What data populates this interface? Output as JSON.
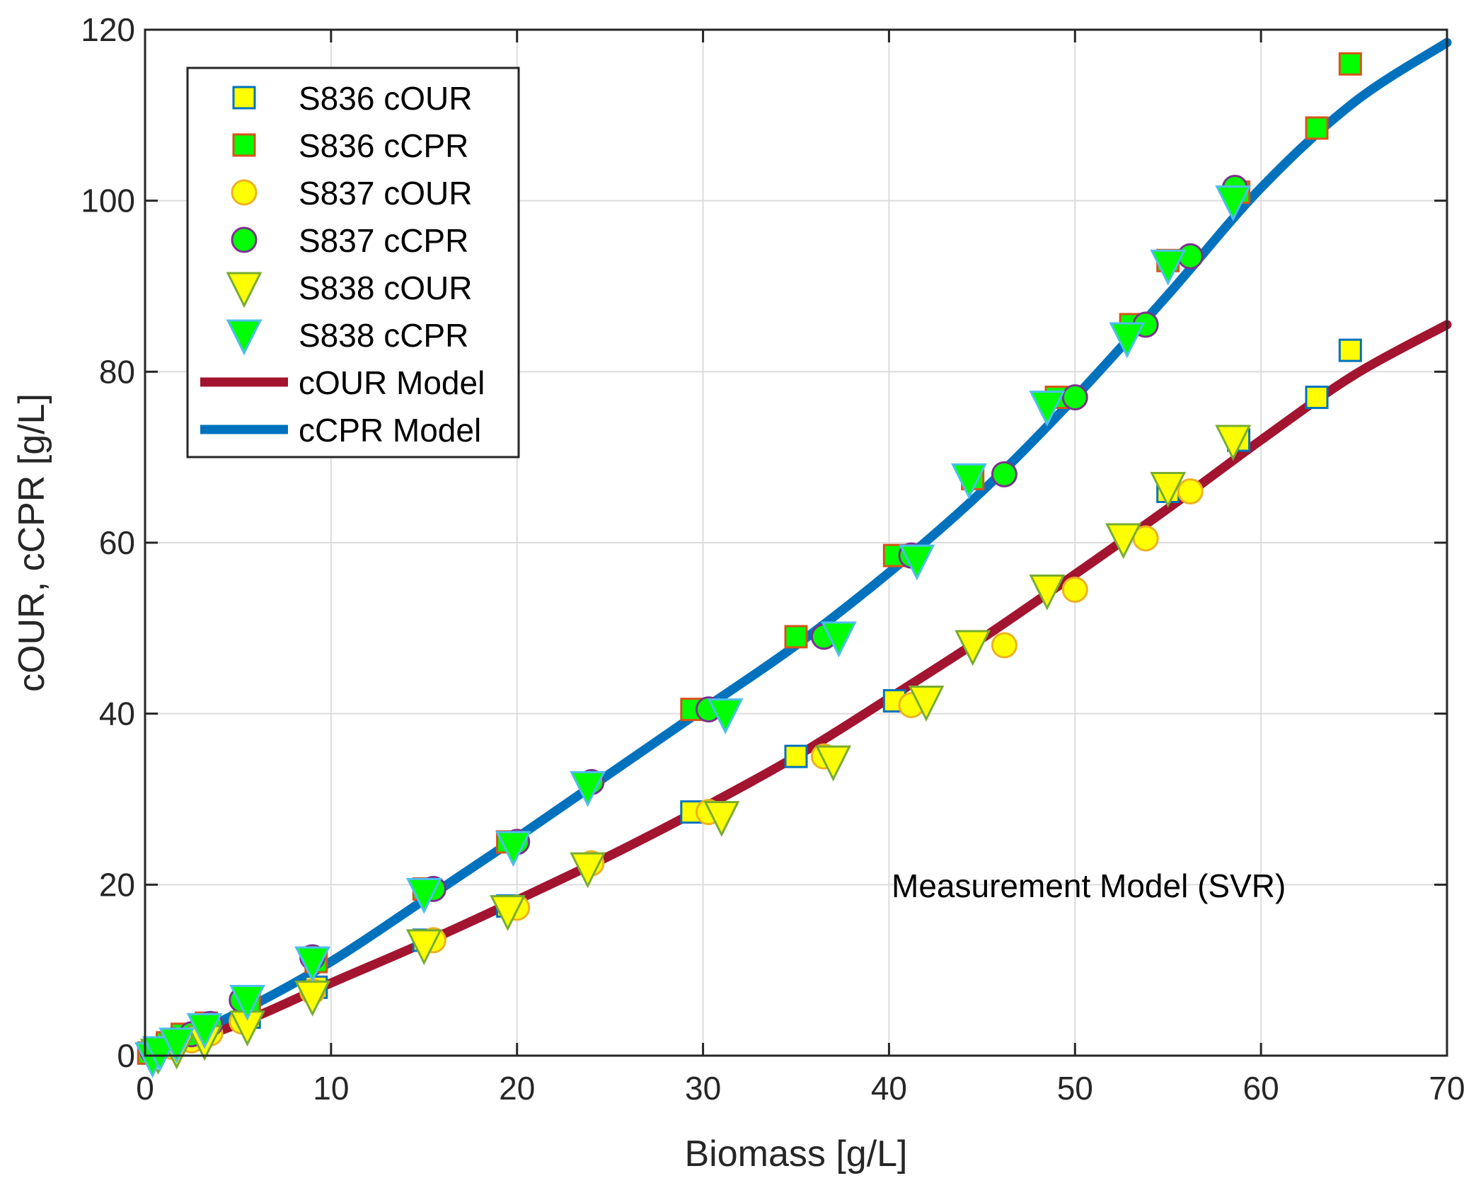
{
  "chart_data": {
    "type": "scatter",
    "title": "",
    "xlabel": "Biomass [g/L]",
    "ylabel": "cOUR, cCPR [g/L]",
    "xlim": [
      0,
      70
    ],
    "ylim": [
      0,
      120
    ],
    "xticks": [
      0,
      10,
      20,
      30,
      40,
      50,
      60,
      70
    ],
    "yticks": [
      0,
      20,
      40,
      60,
      80,
      100,
      120
    ],
    "grid": true,
    "legend_position": "top-left",
    "annotation": "Measurement Model (SVR)",
    "colors": {
      "yellow": "#ffff00",
      "green": "#00ff00",
      "blue_edge": "#0072bd",
      "orange_edge": "#d95319",
      "gold_edge": "#edb120",
      "purple_edge": "#7e2f8e",
      "olive_edge": "#77ac30",
      "cyan_edge": "#4dbeee",
      "cour_model": "#a2142f",
      "ccpr_model": "#0072bd"
    },
    "series": [
      {
        "name": "S836 cOUR",
        "marker": "square",
        "fill": "yellow",
        "edge": "blue_edge",
        "points": [
          [
            0.3,
            0.3
          ],
          [
            1.2,
            1.2
          ],
          [
            2,
            2
          ],
          [
            3.3,
            2.8
          ],
          [
            5.6,
            4.5
          ],
          [
            9.2,
            8
          ],
          [
            15,
            13.5
          ],
          [
            19.5,
            17.5
          ],
          [
            29.4,
            28.5
          ],
          [
            35,
            35
          ],
          [
            40.3,
            41.5
          ],
          [
            55,
            66
          ],
          [
            58.8,
            72
          ],
          [
            63,
            77
          ],
          [
            64.8,
            82.5
          ]
        ]
      },
      {
        "name": "S836 cCPR",
        "marker": "square",
        "fill": "green",
        "edge": "orange_edge",
        "points": [
          [
            0.2,
            0.3
          ],
          [
            1.2,
            1.5
          ],
          [
            2,
            2.5
          ],
          [
            3.3,
            3.8
          ],
          [
            5.6,
            6
          ],
          [
            9.2,
            11
          ],
          [
            15,
            19.5
          ],
          [
            19.5,
            25
          ],
          [
            29.4,
            40.5
          ],
          [
            35,
            49
          ],
          [
            40.3,
            58.5
          ],
          [
            44.5,
            67.5
          ],
          [
            49,
            77
          ],
          [
            53,
            85.5
          ],
          [
            55,
            93
          ],
          [
            58.8,
            101
          ],
          [
            63,
            108.5
          ],
          [
            64.8,
            116
          ]
        ]
      },
      {
        "name": "S837 cOUR",
        "marker": "circle",
        "fill": "yellow",
        "edge": "gold_edge",
        "points": [
          [
            0.4,
            0.4
          ],
          [
            1.5,
            1
          ],
          [
            2.5,
            1.8
          ],
          [
            3.5,
            2.6
          ],
          [
            5.2,
            4
          ],
          [
            9,
            7.5
          ],
          [
            15.5,
            13.5
          ],
          [
            20,
            17.3
          ],
          [
            24,
            22.5
          ],
          [
            30.3,
            28.5
          ],
          [
            36.5,
            35
          ],
          [
            41.2,
            41
          ],
          [
            46.2,
            48
          ],
          [
            50,
            54.5
          ],
          [
            53.8,
            60.5
          ],
          [
            56.2,
            66
          ]
        ]
      },
      {
        "name": "S837 cCPR",
        "marker": "circle",
        "fill": "green",
        "edge": "purple_edge",
        "points": [
          [
            0.4,
            0.5
          ],
          [
            1.5,
            1.8
          ],
          [
            2.5,
            2.5
          ],
          [
            3.5,
            3.7
          ],
          [
            5.2,
            6.5
          ],
          [
            9,
            11.5
          ],
          [
            15.5,
            19.5
          ],
          [
            20,
            25
          ],
          [
            24,
            32
          ],
          [
            30.3,
            40.5
          ],
          [
            36.5,
            49
          ],
          [
            41.2,
            58.5
          ],
          [
            46.2,
            68
          ],
          [
            50,
            77
          ],
          [
            53.8,
            85.5
          ],
          [
            56.2,
            93.5
          ],
          [
            58.6,
            101.5
          ]
        ]
      },
      {
        "name": "S838 cOUR",
        "marker": "triangle-down",
        "fill": "yellow",
        "edge": "olive_edge",
        "points": [
          [
            0.7,
            0.2
          ],
          [
            1.7,
            0.8
          ],
          [
            3.2,
            1.8
          ],
          [
            5.5,
            3.5
          ],
          [
            9,
            7
          ],
          [
            15,
            13
          ],
          [
            19.5,
            17
          ],
          [
            23.8,
            22
          ],
          [
            31,
            28
          ],
          [
            37,
            34.5
          ],
          [
            42,
            41.5
          ],
          [
            44.5,
            48
          ],
          [
            48.5,
            54.5
          ],
          [
            52.6,
            60.5
          ],
          [
            55,
            66.5
          ],
          [
            58.5,
            72
          ]
        ]
      },
      {
        "name": "S838 cCPR",
        "marker": "triangle-down",
        "fill": "green",
        "edge": "cyan_edge",
        "points": [
          [
            0.4,
            -0.2
          ],
          [
            0.8,
            0.5
          ],
          [
            1.7,
            1.5
          ],
          [
            3.2,
            3.2
          ],
          [
            5.5,
            6.5
          ],
          [
            9,
            11
          ],
          [
            15,
            19
          ],
          [
            19.8,
            24.5
          ],
          [
            23.8,
            31.5
          ],
          [
            31.2,
            40
          ],
          [
            37.3,
            49
          ],
          [
            41.5,
            58
          ],
          [
            44.3,
            67.5
          ],
          [
            48.5,
            76
          ],
          [
            52.8,
            84
          ],
          [
            55,
            92.5
          ],
          [
            58.5,
            100
          ]
        ]
      }
    ],
    "lines": [
      {
        "name": "cOUR Model",
        "color": "cour_model",
        "points": [
          [
            0,
            0
          ],
          [
            5,
            3.7
          ],
          [
            10,
            8.5
          ],
          [
            15,
            13.2
          ],
          [
            20,
            18.2
          ],
          [
            25,
            23.4
          ],
          [
            30,
            29
          ],
          [
            35,
            35
          ],
          [
            40,
            41.8
          ],
          [
            45,
            48.8
          ],
          [
            50,
            56.3
          ],
          [
            55,
            64
          ],
          [
            60,
            72
          ],
          [
            65,
            79.6
          ],
          [
            70,
            85.5
          ]
        ]
      },
      {
        "name": "cCPR Model",
        "color": "ccpr_model",
        "points": [
          [
            0,
            0
          ],
          [
            5,
            5
          ],
          [
            10,
            11
          ],
          [
            15,
            18.2
          ],
          [
            20,
            25.5
          ],
          [
            25,
            33
          ],
          [
            30,
            40.5
          ],
          [
            35,
            48
          ],
          [
            40,
            56.5
          ],
          [
            45,
            66
          ],
          [
            50,
            77
          ],
          [
            55,
            89
          ],
          [
            60,
            101.5
          ],
          [
            65,
            111.5
          ],
          [
            70,
            118.5
          ]
        ]
      }
    ]
  }
}
